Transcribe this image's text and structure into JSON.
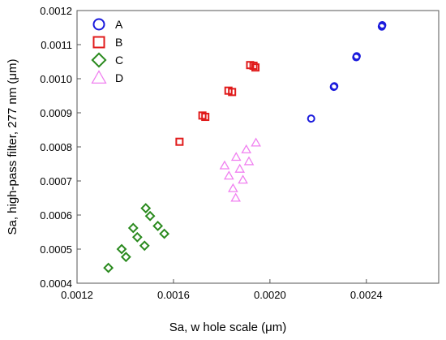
{
  "chart_data": {
    "type": "scatter",
    "title": "",
    "xlabel": "Sa, w hole scale (μm)",
    "ylabel": "Sa, high-pass filter, 277 nm (μm)",
    "xlim": [
      0.0012,
      0.0027
    ],
    "ylim": [
      0.0004,
      0.0012
    ],
    "x_ticks": [
      "0.0012",
      "0.0016",
      "0.0020",
      "0.0024"
    ],
    "y_ticks": [
      "0.0004",
      "0.0005",
      "0.0006",
      "0.0007",
      "0.0008",
      "0.0009",
      "0.0010",
      "0.0011",
      "0.0012"
    ],
    "grid": false,
    "legend_position": "top-left",
    "series": [
      {
        "name": "A",
        "marker": "circle",
        "color": "#1a1adc",
        "points": [
          [
            0.002171,
            0.000883
          ],
          [
            0.002265,
            0.000976
          ],
          [
            0.002267,
            0.000978
          ],
          [
            0.002358,
            0.001063
          ],
          [
            0.00236,
            0.001066
          ],
          [
            0.002464,
            0.001153
          ],
          [
            0.002466,
            0.001157
          ]
        ]
      },
      {
        "name": "B",
        "marker": "square",
        "color": "#e01b1b",
        "points": [
          [
            0.001625,
            0.000815
          ],
          [
            0.00172,
            0.000892
          ],
          [
            0.001732,
            0.000888
          ],
          [
            0.001828,
            0.000965
          ],
          [
            0.001843,
            0.000961
          ],
          [
            0.001918,
            0.00104
          ],
          [
            0.001932,
            0.001038
          ],
          [
            0.00194,
            0.001033
          ]
        ]
      },
      {
        "name": "C",
        "marker": "diamond",
        "color": "#2a8a1e",
        "points": [
          [
            0.00133,
            0.000445
          ],
          [
            0.001385,
            0.0005
          ],
          [
            0.001403,
            0.000477
          ],
          [
            0.001433,
            0.000562
          ],
          [
            0.00145,
            0.000535
          ],
          [
            0.00148,
            0.00051
          ],
          [
            0.001485,
            0.00062
          ],
          [
            0.001503,
            0.000597
          ],
          [
            0.001535,
            0.000568
          ],
          [
            0.001562,
            0.000545
          ]
        ]
      },
      {
        "name": "D",
        "marker": "triangle",
        "color": "#f080f0",
        "points": [
          [
            0.001812,
            0.000745
          ],
          [
            0.00183,
            0.000715
          ],
          [
            0.001847,
            0.000678
          ],
          [
            0.001858,
            0.00065
          ],
          [
            0.00186,
            0.00077
          ],
          [
            0.001875,
            0.000735
          ],
          [
            0.001888,
            0.000703
          ],
          [
            0.001902,
            0.000792
          ],
          [
            0.001913,
            0.000757
          ],
          [
            0.001942,
            0.000812
          ]
        ]
      }
    ]
  }
}
